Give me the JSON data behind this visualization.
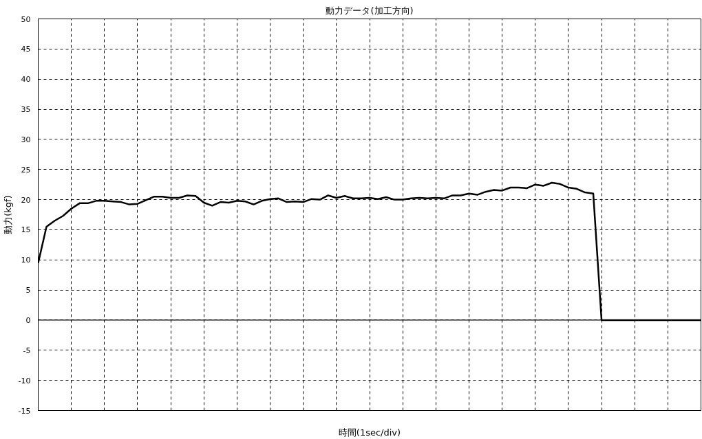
{
  "chart_data": {
    "type": "line",
    "title": "動力データ(加工方向)",
    "xlabel": "時間(1sec/div)",
    "ylabel": "動力(kgf)",
    "categories": [
      null,
      null,
      null,
      null,
      null,
      null,
      null,
      null,
      null,
      null,
      null,
      null,
      null,
      null,
      null,
      null,
      null,
      null,
      null,
      null,
      null,
      null,
      null,
      null,
      null,
      null,
      null,
      null,
      null,
      null,
      null,
      null,
      null,
      null,
      null,
      null,
      null,
      null,
      null,
      null,
      null,
      null,
      null,
      null,
      null,
      null,
      null,
      null,
      null,
      null,
      null,
      null,
      null,
      null,
      null,
      null,
      null,
      null,
      null,
      null,
      null,
      null,
      null,
      null,
      null,
      null,
      null,
      null,
      null,
      null,
      null,
      null,
      null,
      null,
      null,
      null,
      null,
      null,
      null,
      null,
      null
    ],
    "series": [
      {
        "color": "#000000",
        "values": [
          9.5,
          15.5,
          16.5,
          17.3,
          18.5,
          19.4,
          19.4,
          19.8,
          19.8,
          19.7,
          19.6,
          19.2,
          19.3,
          19.9,
          20.5,
          20.5,
          20.3,
          20.3,
          20.7,
          20.6,
          19.5,
          19.0,
          19.6,
          19.5,
          19.8,
          19.7,
          19.2,
          19.8,
          20.1,
          20.2,
          19.6,
          19.7,
          19.6,
          20.1,
          20.0,
          20.7,
          20.3,
          20.6,
          20.2,
          20.2,
          20.3,
          20.1,
          20.4,
          20.0,
          20.0,
          20.2,
          20.3,
          20.2,
          20.3,
          20.2,
          20.7,
          20.7,
          21.0,
          20.8,
          21.3,
          21.6,
          21.5,
          22.0,
          22.0,
          21.9,
          22.5,
          22.3,
          22.8,
          22.6,
          22.0,
          21.8,
          21.2,
          21.0,
          0,
          0,
          0,
          0,
          0,
          0,
          0,
          0,
          0,
          0,
          0,
          0,
          0
        ]
      }
    ],
    "ylim": [
      -15,
      50
    ],
    "yticks": [
      -15,
      -10,
      -5,
      0,
      5,
      10,
      15,
      20,
      25,
      30,
      35,
      40,
      45,
      50
    ],
    "ref_lines": [
      {
        "axis": "y",
        "value": 0
      }
    ],
    "grid": true,
    "tick_labels": "y",
    "marker": "none",
    "line_style": "solid"
  }
}
